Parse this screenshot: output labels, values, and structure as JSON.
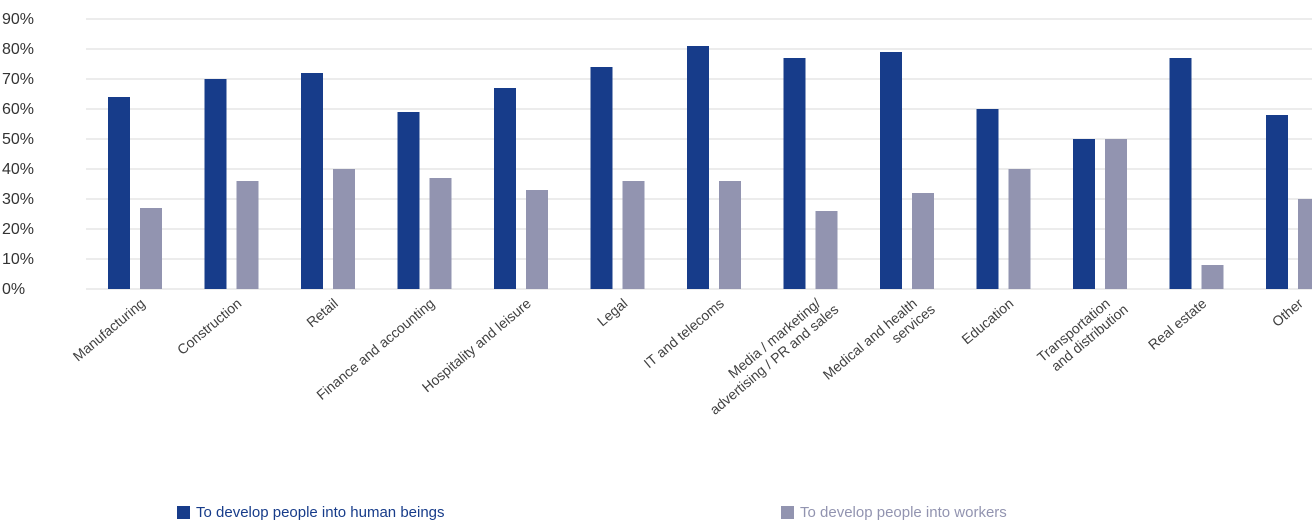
{
  "chart_data": {
    "type": "bar",
    "categories": [
      [
        "Manufacturing"
      ],
      [
        "Construction"
      ],
      [
        "Retail"
      ],
      [
        "Finance and accounting"
      ],
      [
        "Hospitality and leisure"
      ],
      [
        "Legal"
      ],
      [
        "IT and telecoms"
      ],
      [
        "Media / marketing/",
        "advertising / PR and sales"
      ],
      [
        "Medical and health",
        "services"
      ],
      [
        "Education"
      ],
      [
        "Transportation",
        "and distribution"
      ],
      [
        "Real estate"
      ],
      [
        "Other"
      ]
    ],
    "series": [
      {
        "name": "To develop people into human beings",
        "color": "#173c8a",
        "values": [
          64,
          70,
          72,
          59,
          67,
          74,
          81,
          77,
          79,
          60,
          50,
          77,
          58
        ]
      },
      {
        "name": "To develop people into workers",
        "color": "#9294b0",
        "values": [
          27,
          36,
          40,
          37,
          33,
          36,
          36,
          26,
          32,
          40,
          50,
          8,
          30
        ]
      }
    ],
    "yticks": [
      "0%",
      "10%",
      "20%",
      "30%",
      "40%",
      "50%",
      "60%",
      "70%",
      "80%",
      "90%"
    ],
    "ylim": [
      0,
      90
    ],
    "grid": true,
    "legend_position": "bottom"
  }
}
